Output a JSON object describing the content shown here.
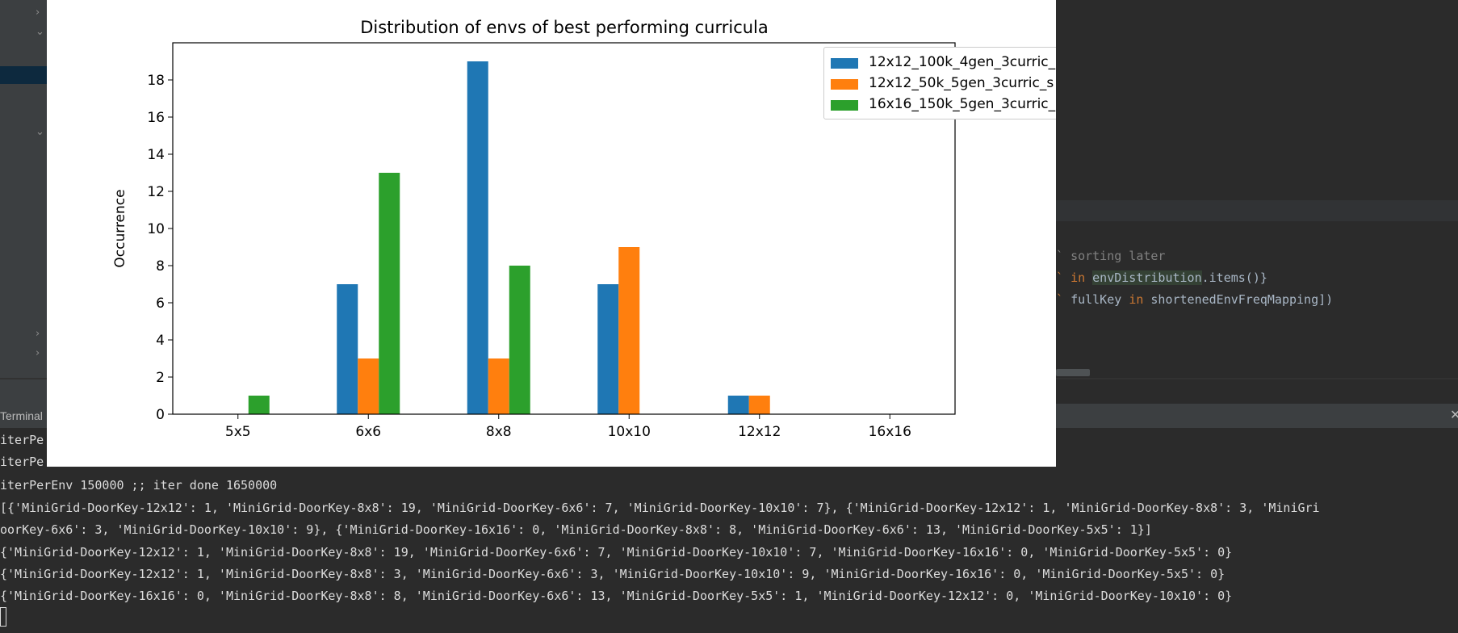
{
  "terminal": {
    "title": "Terminal",
    "close_glyph": "✕",
    "lines": [
      "iterPe",
      "iterPe",
      "iterPerEnv 150000 ;; iter done 1650000",
      "[{'MiniGrid-DoorKey-12x12': 1, 'MiniGrid-DoorKey-8x8': 19, 'MiniGrid-DoorKey-6x6': 7, 'MiniGrid-DoorKey-10x10': 7}, {'MiniGrid-DoorKey-12x12': 1, 'MiniGrid-DoorKey-8x8': 3, 'MiniGri",
      "oorKey-6x6': 3, 'MiniGrid-DoorKey-10x10': 9}, {'MiniGrid-DoorKey-16x16': 0, 'MiniGrid-DoorKey-8x8': 8, 'MiniGrid-DoorKey-6x6': 13, 'MiniGrid-DoorKey-5x5': 1}]",
      "{'MiniGrid-DoorKey-12x12': 1, 'MiniGrid-DoorKey-8x8': 19, 'MiniGrid-DoorKey-6x6': 7, 'MiniGrid-DoorKey-10x10': 7, 'MiniGrid-DoorKey-16x16': 0, 'MiniGrid-DoorKey-5x5': 0}",
      "{'MiniGrid-DoorKey-12x12': 1, 'MiniGrid-DoorKey-8x8': 3, 'MiniGrid-DoorKey-6x6': 3, 'MiniGrid-DoorKey-10x10': 9, 'MiniGrid-DoorKey-16x16': 0, 'MiniGrid-DoorKey-5x5': 0}",
      "{'MiniGrid-DoorKey-16x16': 0, 'MiniGrid-DoorKey-8x8': 8, 'MiniGrid-DoorKey-6x6': 13, 'MiniGrid-DoorKey-5x5': 1, 'MiniGrid-DoorKey-12x12': 0, 'MiniGrid-DoorKey-10x10': 0}"
    ]
  },
  "editor": {
    "line1_comment": "sorting later",
    "line2_kw": "in",
    "line2_ident": "envDistribution",
    "line2_rest": ".items()}",
    "line3_ident": "fullKey",
    "line3_kw": "in",
    "line3_rest": "shortenedEnvFreqMapping])"
  },
  "chart_data": {
    "type": "bar",
    "title": "Distribution of envs of best performing curricula",
    "xlabel": "",
    "ylabel": "Occurrence",
    "categories": [
      "5x5",
      "6x6",
      "8x8",
      "10x10",
      "12x12",
      "16x16"
    ],
    "ylim": [
      0,
      20
    ],
    "yticks": [
      0,
      2,
      4,
      6,
      8,
      10,
      12,
      14,
      16,
      18
    ],
    "grid": false,
    "legend_position": "top-right",
    "series": [
      {
        "name": "12x12_100k_4gen_3curric_",
        "color": "#1f77b4",
        "values": [
          0,
          7,
          19,
          7,
          1,
          0
        ]
      },
      {
        "name": "12x12_50k_5gen_3curric_s",
        "color": "#ff7f0e",
        "values": [
          0,
          3,
          3,
          9,
          1,
          0
        ]
      },
      {
        "name": "16x16_150k_5gen_3curric_",
        "color": "#2ca02c",
        "values": [
          1,
          13,
          8,
          0,
          0,
          0
        ]
      }
    ]
  }
}
